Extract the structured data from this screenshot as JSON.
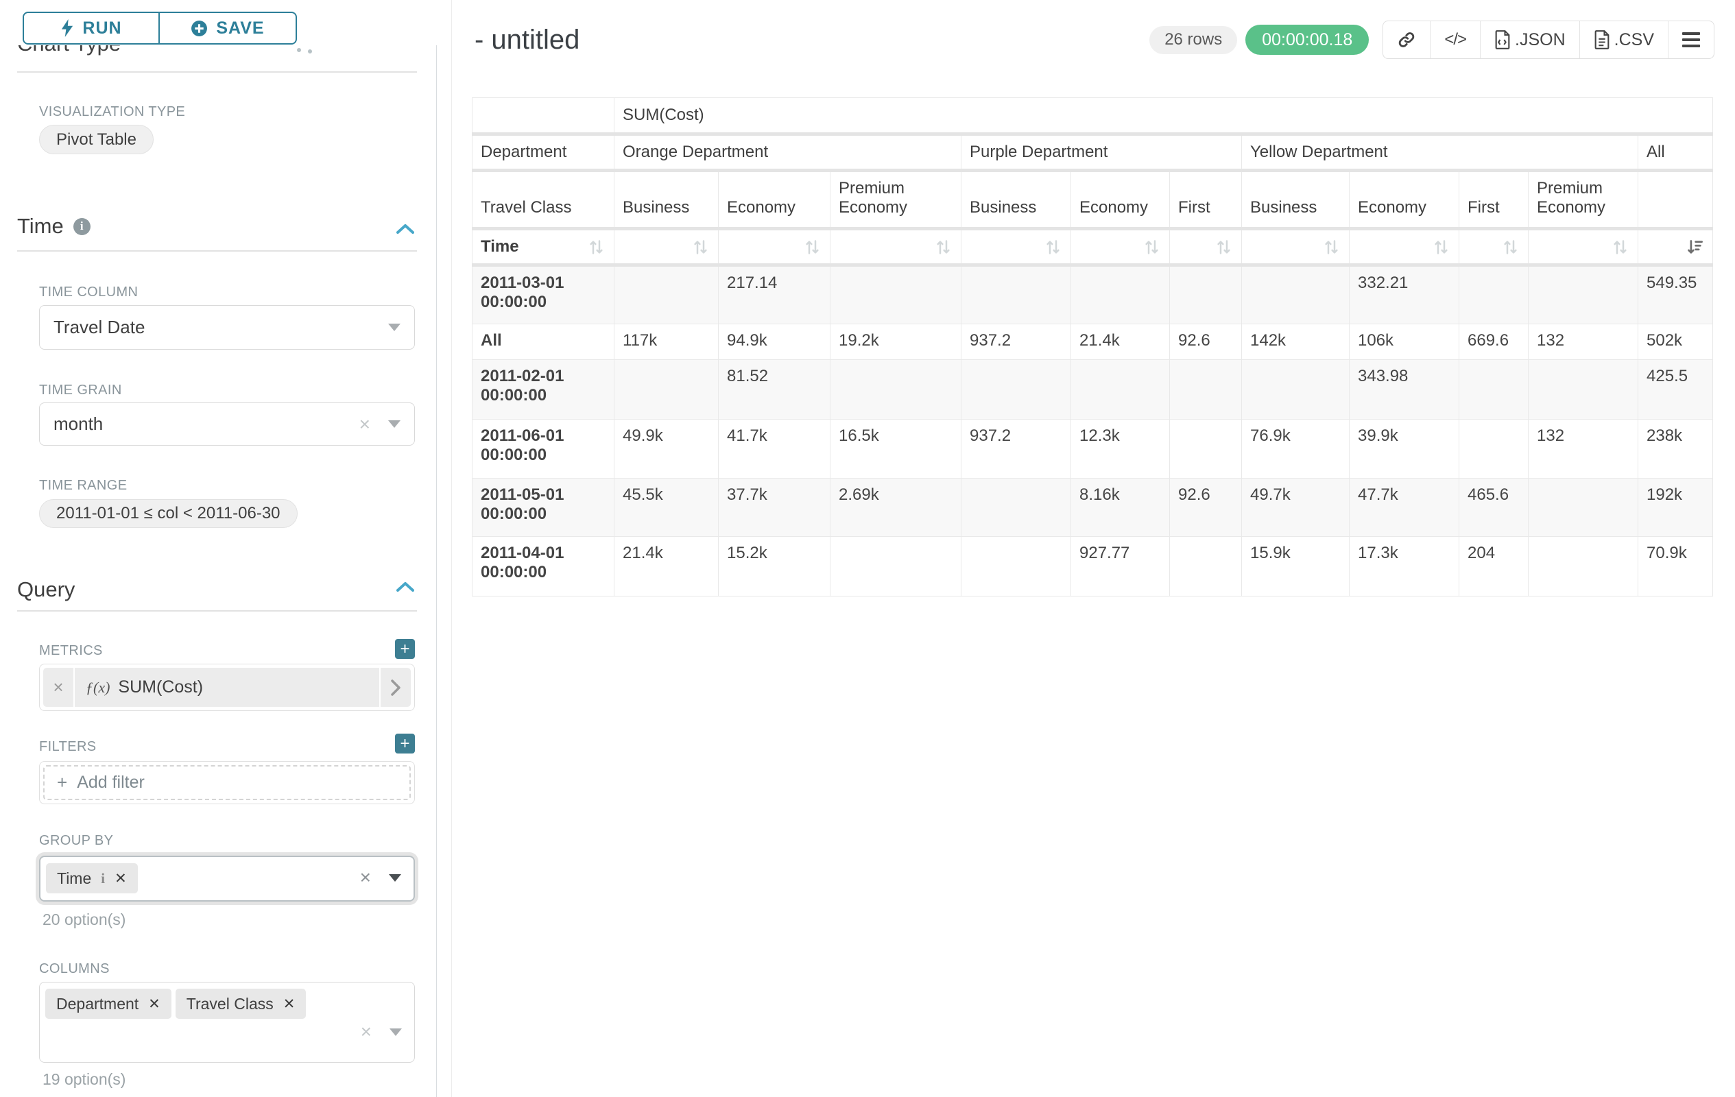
{
  "colors": {
    "accent": "#2d7f99",
    "success": "#5ac189",
    "label_gray": "#8a959b",
    "stripe": "#f8f8f8"
  },
  "sidebar": {
    "run_label": "RUN",
    "save_label": "SAVE",
    "chart_type_heading": "Chart Type",
    "viz_type_label": "VISUALIZATION TYPE",
    "viz_type_value": "Pivot Table",
    "time_section": {
      "title": "Time",
      "time_column_label": "TIME COLUMN",
      "time_column_value": "Travel Date",
      "time_grain_label": "TIME GRAIN",
      "time_grain_value": "month",
      "time_range_label": "TIME RANGE",
      "time_range_value": "2011-01-01 ≤ col < 2011-06-30"
    },
    "query_section": {
      "title": "Query",
      "metrics_label": "METRICS",
      "metric_fx": "ƒ(x)",
      "metric_value": "SUM(Cost)",
      "filters_label": "FILTERS",
      "add_filter_label": "Add filter",
      "group_by_label": "GROUP BY",
      "group_by_tags": [
        "Time"
      ],
      "group_by_options_note": "20 option(s)",
      "columns_label": "COLUMNS",
      "columns_tags": [
        "Department",
        "Travel Class"
      ],
      "columns_options_note": "19 option(s)"
    }
  },
  "header": {
    "title": "- untitled",
    "rows_badge": "26 rows",
    "timer": "00:00:00.18",
    "json_label": ".JSON",
    "csv_label": ".CSV"
  },
  "pivot": {
    "metric_header": "SUM(Cost)",
    "row_dim_label": "Department",
    "subrow_dim_label": "Travel Class",
    "time_label": "Time",
    "col_groups": [
      {
        "label": "Orange Department",
        "cols": [
          "Business",
          "Economy",
          "Premium Economy"
        ]
      },
      {
        "label": "Purple Department",
        "cols": [
          "Business",
          "Economy",
          "First"
        ]
      },
      {
        "label": "Yellow Department",
        "cols": [
          "Business",
          "Economy",
          "First",
          "Premium Economy"
        ]
      },
      {
        "label": "All",
        "cols": [
          ""
        ]
      }
    ],
    "rows": [
      {
        "label": "2011-03-01 00:00:00",
        "values": [
          "",
          "217.14",
          "",
          "",
          "",
          "",
          "",
          "332.21",
          "",
          "",
          "549.35"
        ]
      },
      {
        "label": "All",
        "values": [
          "117k",
          "94.9k",
          "19.2k",
          "937.2",
          "21.4k",
          "92.6",
          "142k",
          "106k",
          "669.6",
          "132",
          "502k"
        ]
      },
      {
        "label": "2011-02-01 00:00:00",
        "values": [
          "",
          "81.52",
          "",
          "",
          "",
          "",
          "",
          "343.98",
          "",
          "",
          "425.5"
        ]
      },
      {
        "label": "2011-06-01 00:00:00",
        "values": [
          "49.9k",
          "41.7k",
          "16.5k",
          "937.2",
          "12.3k",
          "",
          "76.9k",
          "39.9k",
          "",
          "132",
          "238k"
        ]
      },
      {
        "label": "2011-05-01 00:00:00",
        "values": [
          "45.5k",
          "37.7k",
          "2.69k",
          "",
          "8.16k",
          "92.6",
          "49.7k",
          "47.7k",
          "465.6",
          "",
          "192k"
        ]
      },
      {
        "label": "2011-04-01 00:00:00",
        "values": [
          "21.4k",
          "15.2k",
          "",
          "",
          "927.77",
          "",
          "15.9k",
          "17.3k",
          "204",
          "",
          "70.9k"
        ]
      }
    ]
  }
}
